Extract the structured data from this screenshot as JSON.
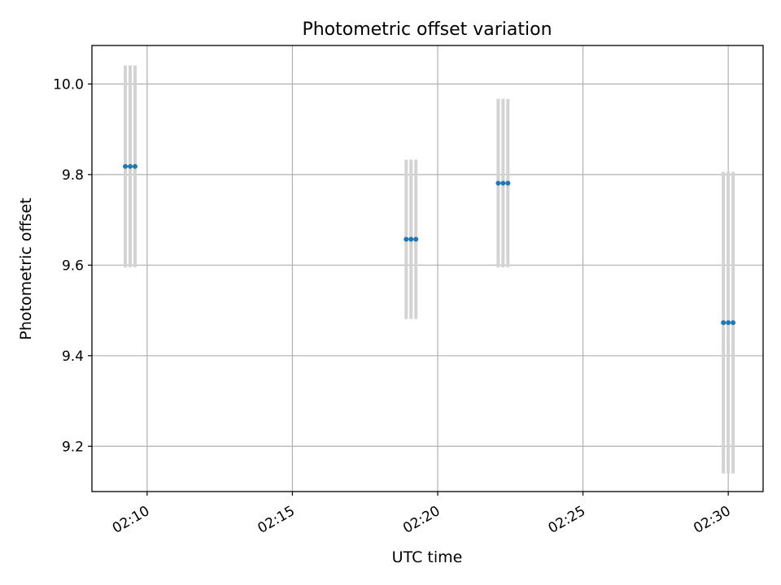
{
  "chart_data": {
    "type": "scatter",
    "title": "Photometric offset variation",
    "xlabel": "UTC time",
    "ylabel": "Photometric offset",
    "x_tick_labels": [
      "02:10",
      "02:15",
      "02:20",
      "02:25",
      "02:30"
    ],
    "x_ticks_minutes": [
      10,
      15,
      20,
      25,
      30
    ],
    "y_tick_labels": [
      "9.2",
      "9.4",
      "9.6",
      "9.8",
      "10.0"
    ],
    "y_ticks": [
      9.2,
      9.4,
      9.6,
      9.8,
      10.0
    ],
    "xlim_minutes": [
      8.1,
      31.2
    ],
    "ylim": [
      9.1,
      10.085
    ],
    "grid": true,
    "point_color": "#1f77b4",
    "errorbar_color": "#d3d3d3",
    "groups": [
      {
        "times": [
          "02:09:15",
          "02:09:25",
          "02:09:35"
        ],
        "y": 9.818,
        "err": 0.223
      },
      {
        "times": [
          "02:18:55",
          "02:19:05",
          "02:19:15"
        ],
        "y": 9.657,
        "err": 0.176
      },
      {
        "times": [
          "02:22:05",
          "02:22:15",
          "02:22:25"
        ],
        "y": 9.781,
        "err": 0.186
      },
      {
        "times": [
          "02:29:50",
          "02:30:00",
          "02:30:10"
        ],
        "y": 9.473,
        "err": 0.333
      }
    ]
  }
}
